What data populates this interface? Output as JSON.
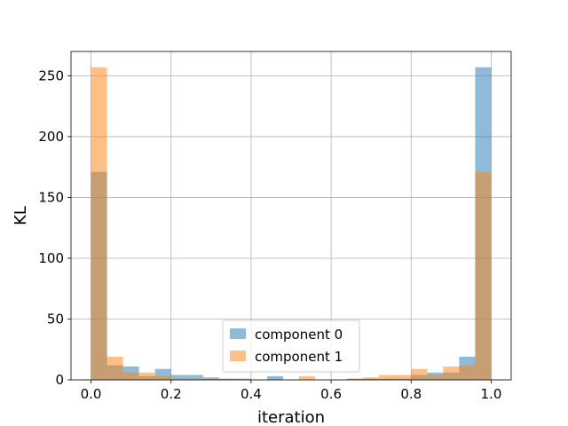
{
  "chart_data": {
    "type": "bar",
    "subtype": "histogram",
    "xlabel": "iteration",
    "ylabel": "KL",
    "xlim": [
      -0.05,
      1.05
    ],
    "ylim": [
      0,
      270
    ],
    "xticks": [
      0.0,
      0.2,
      0.4,
      0.6,
      0.8,
      1.0
    ],
    "xtick_labels": [
      "0.0",
      "0.2",
      "0.4",
      "0.6",
      "0.8",
      "1.0"
    ],
    "yticks": [
      0,
      50,
      100,
      150,
      200,
      250
    ],
    "ytick_labels": [
      "0",
      "50",
      "100",
      "150",
      "200",
      "250"
    ],
    "grid": true,
    "legend_position": "lower-center",
    "bin_edges": [
      0.0,
      0.04,
      0.08,
      0.12,
      0.16,
      0.2,
      0.24,
      0.28,
      0.32,
      0.36,
      0.4,
      0.44,
      0.48,
      0.52,
      0.56,
      0.6,
      0.64,
      0.68,
      0.72,
      0.76,
      0.8,
      0.84,
      0.88,
      0.92,
      0.96,
      1.0
    ],
    "series": [
      {
        "name": "component 0",
        "color": "#1f77b4",
        "alpha": 0.5,
        "values": [
          171,
          12,
          11,
          3,
          9,
          4,
          4,
          2,
          1,
          1,
          0,
          3,
          0,
          0,
          0,
          0,
          1,
          1,
          1,
          1,
          4,
          6,
          6,
          19,
          257
        ]
      },
      {
        "name": "component 1",
        "color": "#ff7f0e",
        "alpha": 0.5,
        "values": [
          257,
          19,
          6,
          6,
          3,
          1,
          1,
          1,
          1,
          0,
          0,
          0,
          0,
          3,
          0,
          0,
          1,
          2,
          4,
          4,
          9,
          4,
          11,
          12,
          171
        ]
      }
    ]
  }
}
